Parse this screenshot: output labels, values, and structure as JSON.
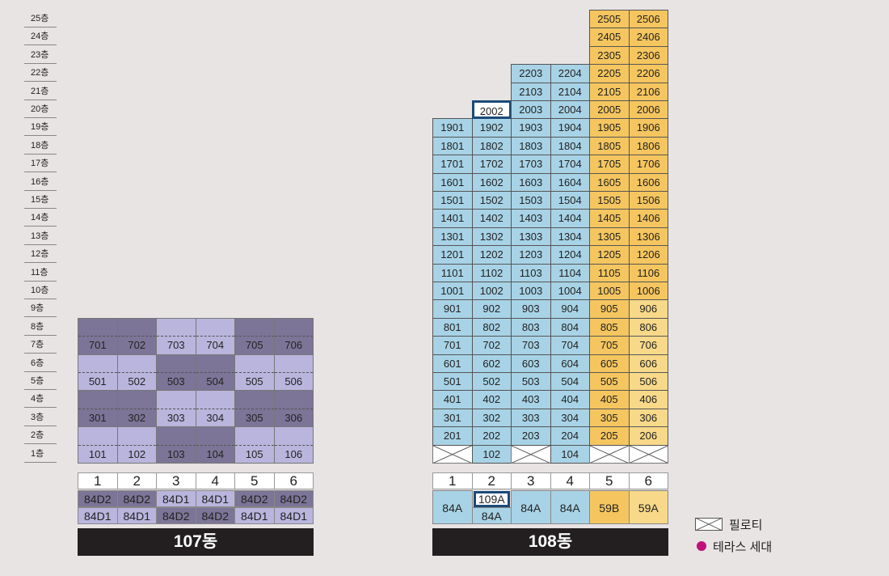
{
  "floor_labels": [
    "25층",
    "24층",
    "23층",
    "22층",
    "21층",
    "20층",
    "19층",
    "18층",
    "17층",
    "16층",
    "15층",
    "14층",
    "13층",
    "12층",
    "11층",
    "10층",
    "9층",
    "8층",
    "7층",
    "6층",
    "5층",
    "4층",
    "3층",
    "2층",
    "1층"
  ],
  "building107": {
    "title": "107동",
    "line_numbers": [
      "1",
      "2",
      "3",
      "4",
      "5",
      "6"
    ],
    "type_row1": [
      "84D2",
      "84D2",
      "84D1",
      "84D1",
      "84D2",
      "84D2"
    ],
    "type_row2": [
      "84D1",
      "84D1",
      "84D2",
      "84D2",
      "84D1",
      "84D1"
    ],
    "units_row_7": [
      "701",
      "702",
      "703",
      "704",
      "705",
      "706"
    ],
    "units_row_5": [
      "501",
      "502",
      "503",
      "504",
      "505",
      "506"
    ],
    "units_row_3": [
      "301",
      "302",
      "303",
      "304",
      "305",
      "306"
    ],
    "units_row_1": [
      "101",
      "102",
      "103",
      "104",
      "105",
      "106"
    ],
    "colors": {
      "dark": "#7c7597",
      "light": "#b9b5dd"
    }
  },
  "building108": {
    "title": "108동",
    "line_numbers": [
      "1",
      "2",
      "3",
      "4",
      "5",
      "6"
    ],
    "types": [
      "84A",
      "109A",
      "84A",
      "84A",
      "59B",
      "59A"
    ],
    "type2_line2": "84A",
    "units": {
      "25": [
        "",
        "",
        "",
        "",
        "2505",
        "2506"
      ],
      "24": [
        "",
        "",
        "",
        "",
        "2405",
        "2406"
      ],
      "23": [
        "",
        "",
        "",
        "",
        "2305",
        "2306"
      ],
      "22": [
        "",
        "",
        "2203",
        "2204",
        "2205",
        "2206"
      ],
      "21": [
        "",
        "",
        "2103",
        "2104",
        "2105",
        "2106"
      ],
      "20": [
        "",
        "2002",
        "2003",
        "2004",
        "2005",
        "2006"
      ],
      "19": [
        "1901",
        "1902",
        "1903",
        "1904",
        "1905",
        "1906"
      ],
      "18": [
        "1801",
        "1802",
        "1803",
        "1804",
        "1805",
        "1806"
      ],
      "17": [
        "1701",
        "1702",
        "1703",
        "1704",
        "1705",
        "1706"
      ],
      "16": [
        "1601",
        "1602",
        "1603",
        "1604",
        "1605",
        "1606"
      ],
      "15": [
        "1501",
        "1502",
        "1503",
        "1504",
        "1505",
        "1506"
      ],
      "14": [
        "1401",
        "1402",
        "1403",
        "1404",
        "1405",
        "1406"
      ],
      "13": [
        "1301",
        "1302",
        "1303",
        "1304",
        "1305",
        "1306"
      ],
      "12": [
        "1201",
        "1202",
        "1203",
        "1204",
        "1205",
        "1206"
      ],
      "11": [
        "1101",
        "1102",
        "1103",
        "1104",
        "1105",
        "1106"
      ],
      "10": [
        "1001",
        "1002",
        "1003",
        "1004",
        "1005",
        "1006"
      ],
      "9": [
        "901",
        "902",
        "903",
        "904",
        "905",
        "906"
      ],
      "8": [
        "801",
        "802",
        "803",
        "804",
        "805",
        "806"
      ],
      "7": [
        "701",
        "702",
        "703",
        "704",
        "705",
        "706"
      ],
      "6": [
        "601",
        "602",
        "603",
        "604",
        "605",
        "606"
      ],
      "5": [
        "501",
        "502",
        "503",
        "504",
        "505",
        "506"
      ],
      "4": [
        "401",
        "402",
        "403",
        "404",
        "405",
        "406"
      ],
      "3": [
        "301",
        "302",
        "303",
        "304",
        "305",
        "306"
      ],
      "2": [
        "201",
        "202",
        "203",
        "204",
        "205",
        "206"
      ],
      "1": [
        "",
        "102",
        "",
        "104",
        "",
        ""
      ]
    },
    "colors": {
      "blue": "#a8d3e6",
      "yellow": "#f5c65f",
      "pale_yellow": "#f8d98a",
      "highlight": "#1b4a78"
    }
  },
  "legend": {
    "pilotis": "필로티",
    "terrace": "테라스 세대",
    "terrace_color": "#c0107a"
  }
}
